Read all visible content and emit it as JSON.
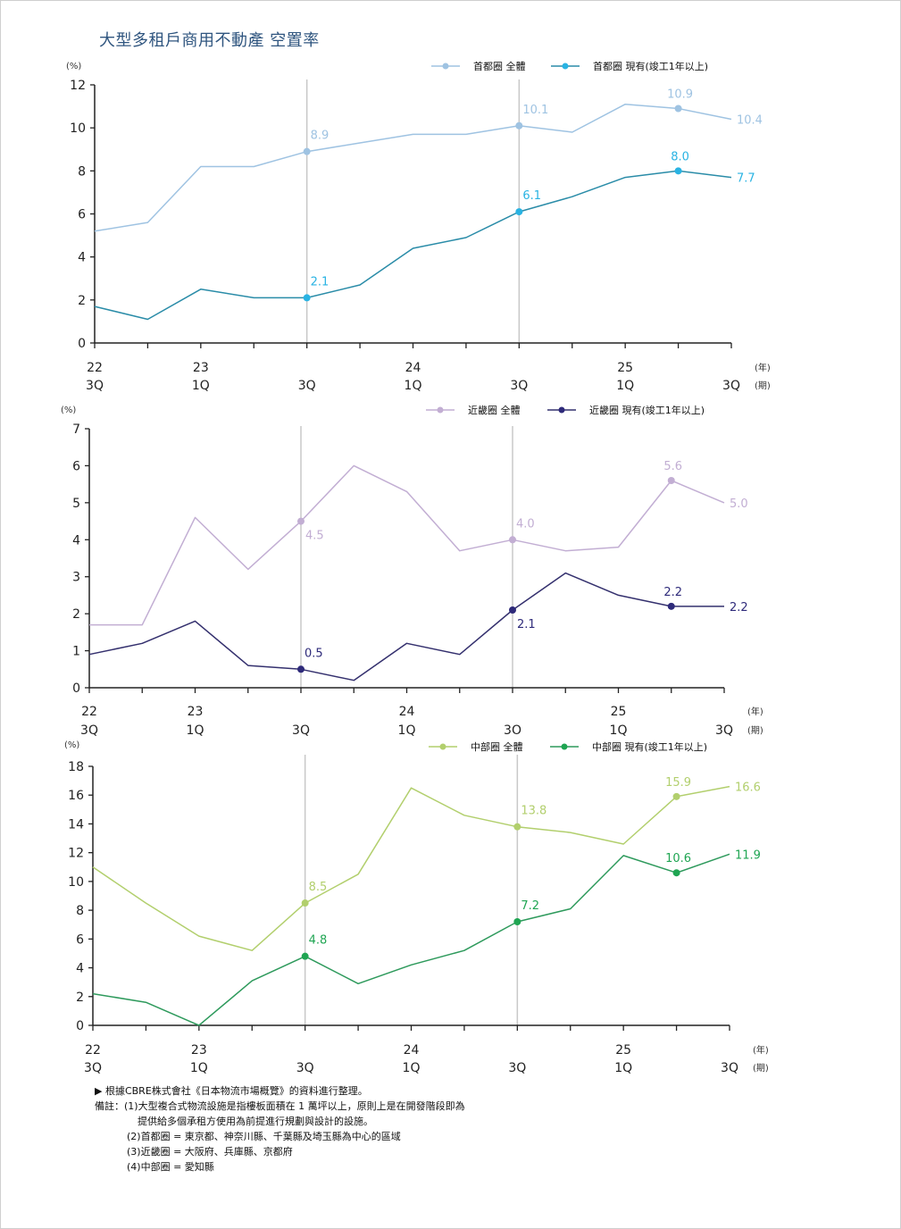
{
  "title": "大型多租戶商用不動產 空置率",
  "notes": {
    "source": "▶ 根據CBRE株式會社《日本物流市場概覽》的資料進行整理。",
    "remark_prefix": "備註：",
    "lines": [
      "(1)大型複合式物流設施是指樓板面積在 1 萬坪以上，原則上是在開發階段即為",
      "提供給多個承租方使用為前提進行規劃與設計的設施。",
      "(2)首都圈 = 東京都、神奈川縣、千葉縣及埼玉縣為中心的區域",
      "(3)近畿圈 = 大阪府、兵庫縣、京都府",
      "(4)中部圈 = 愛知縣"
    ]
  },
  "chart_data": [
    {
      "type": "line",
      "region": "首都圈",
      "ylabel": "(%)",
      "ylim": [
        0,
        12
      ],
      "yticks": [
        0,
        2,
        4,
        6,
        8,
        10,
        12
      ],
      "x_unit_year": "(年)",
      "x_unit_period": "(期)",
      "year_labels": [
        "22",
        "",
        "23",
        "",
        "",
        "",
        "24",
        "",
        "",
        "",
        "25",
        "",
        ""
      ],
      "period_labels": [
        "3Q",
        "",
        "1Q",
        "",
        "3Q",
        "",
        "1Q",
        "",
        "3Q",
        "",
        "1Q",
        "",
        "3Q"
      ],
      "highlight_indices": [
        4,
        8
      ],
      "legend_position": "top-right",
      "series": [
        {
          "name": "首都圈  全體",
          "color": "#9fc3e2",
          "values": [
            5.2,
            5.6,
            8.2,
            8.2,
            8.9,
            9.3,
            9.7,
            9.7,
            10.1,
            9.8,
            11.1,
            10.9,
            10.4
          ],
          "labels": [
            {
              "index": 4,
              "text": "8.9",
              "pos": "above"
            },
            {
              "index": 8,
              "text": "10.1",
              "pos": "above"
            },
            {
              "index": 11,
              "text": "10.9",
              "pos": "above"
            },
            {
              "index": 12,
              "text": "10.4",
              "pos": "right"
            }
          ],
          "markers": [
            4,
            8,
            11
          ]
        },
        {
          "name": "首都圈  現有(竣工1年以上)",
          "color": "#2a8ca8",
          "marker_color": "#29b3e3",
          "values": [
            1.7,
            1.1,
            2.5,
            2.1,
            2.1,
            2.7,
            4.4,
            4.9,
            6.1,
            6.8,
            7.7,
            8.0,
            7.7
          ],
          "labels": [
            {
              "index": 4,
              "text": "2.1",
              "pos": "above"
            },
            {
              "index": 8,
              "text": "6.1",
              "pos": "above"
            },
            {
              "index": 11,
              "text": "8.0",
              "pos": "above"
            },
            {
              "index": 12,
              "text": "7.7",
              "pos": "right"
            }
          ],
          "markers": [
            4,
            8,
            11
          ]
        }
      ]
    },
    {
      "type": "line",
      "region": "近畿圈",
      "ylabel": "(%)",
      "ylim": [
        0,
        7
      ],
      "yticks": [
        0,
        1,
        2,
        3,
        4,
        5,
        6,
        7
      ],
      "x_unit_year": "(年)",
      "x_unit_period": "(期)",
      "year_labels": [
        "22",
        "",
        "23",
        "",
        "",
        "",
        "24",
        "",
        "",
        "",
        "25",
        "",
        ""
      ],
      "period_labels": [
        "3Q",
        "",
        "1Q",
        "",
        "3Q",
        "",
        "1Q",
        "",
        "3O",
        "",
        "1Q",
        "",
        "3Q"
      ],
      "highlight_indices": [
        4,
        8
      ],
      "legend_position": "top-right",
      "series": [
        {
          "name": "近畿圈  全體",
          "color": "#c2aed3",
          "values": [
            1.7,
            1.7,
            4.6,
            3.2,
            4.5,
            6.0,
            5.3,
            3.7,
            4.0,
            3.7,
            3.8,
            5.6,
            5.0
          ],
          "labels": [
            {
              "index": 4,
              "text": "4.5",
              "pos": "below"
            },
            {
              "index": 8,
              "text": "4.0",
              "pos": "above"
            },
            {
              "index": 11,
              "text": "5.6",
              "pos": "above"
            },
            {
              "index": 12,
              "text": "5.0",
              "pos": "right"
            }
          ],
          "markers": [
            4,
            8,
            11
          ]
        },
        {
          "name": "近畿圈  現有(竣工1年以上)",
          "color": "#34306e",
          "marker_color": "#2e2a7a",
          "values": [
            0.9,
            1.2,
            1.8,
            0.6,
            0.5,
            0.2,
            1.2,
            0.9,
            2.1,
            3.1,
            2.5,
            2.2,
            2.2
          ],
          "labels": [
            {
              "index": 4,
              "text": "0.5",
              "pos": "above"
            },
            {
              "index": 8,
              "text": "2.1",
              "pos": "below"
            },
            {
              "index": 11,
              "text": "2.2",
              "pos": "above"
            },
            {
              "index": 12,
              "text": "2.2",
              "pos": "right"
            }
          ],
          "markers": [
            4,
            8,
            11
          ]
        }
      ]
    },
    {
      "type": "line",
      "region": "中部圈",
      "ylabel": "(%)",
      "ylim": [
        0,
        18
      ],
      "yticks": [
        0,
        2,
        4,
        6,
        8,
        10,
        12,
        14,
        16,
        18
      ],
      "x_unit_year": "(年)",
      "x_unit_period": "(期)",
      "year_labels": [
        "22",
        "",
        "23",
        "",
        "",
        "",
        "24",
        "",
        "",
        "",
        "25",
        "",
        ""
      ],
      "period_labels": [
        "3Q",
        "",
        "1Q",
        "",
        "3Q",
        "",
        "1Q",
        "",
        "3Q",
        "",
        "1Q",
        "",
        "3Q"
      ],
      "highlight_indices": [
        4,
        8
      ],
      "legend_position": "top-right",
      "series": [
        {
          "name": "中部圈  全體",
          "color": "#b2cf6d",
          "values": [
            11.0,
            8.5,
            6.2,
            5.2,
            8.5,
            10.5,
            16.5,
            14.6,
            13.8,
            13.4,
            12.6,
            15.9,
            16.6
          ],
          "labels": [
            {
              "index": 4,
              "text": "8.5",
              "pos": "above"
            },
            {
              "index": 8,
              "text": "13.8",
              "pos": "above"
            },
            {
              "index": 11,
              "text": "15.9",
              "pos": "above"
            },
            {
              "index": 12,
              "text": "16.6",
              "pos": "right"
            }
          ],
          "markers": [
            4,
            8,
            11
          ]
        },
        {
          "name": "中部圈  現有(竣工1年以上)",
          "color": "#2e9a5c",
          "marker_color": "#1fa552",
          "values": [
            2.2,
            1.6,
            0.0,
            3.1,
            4.8,
            2.9,
            4.2,
            5.2,
            7.2,
            8.1,
            11.8,
            10.6,
            11.9
          ],
          "labels": [
            {
              "index": 4,
              "text": "4.8",
              "pos": "above"
            },
            {
              "index": 8,
              "text": "7.2",
              "pos": "above"
            },
            {
              "index": 11,
              "text": "10.6",
              "pos": "above"
            },
            {
              "index": 12,
              "text": "11.9",
              "pos": "right"
            }
          ],
          "markers": [
            4,
            8,
            11
          ]
        }
      ]
    }
  ]
}
